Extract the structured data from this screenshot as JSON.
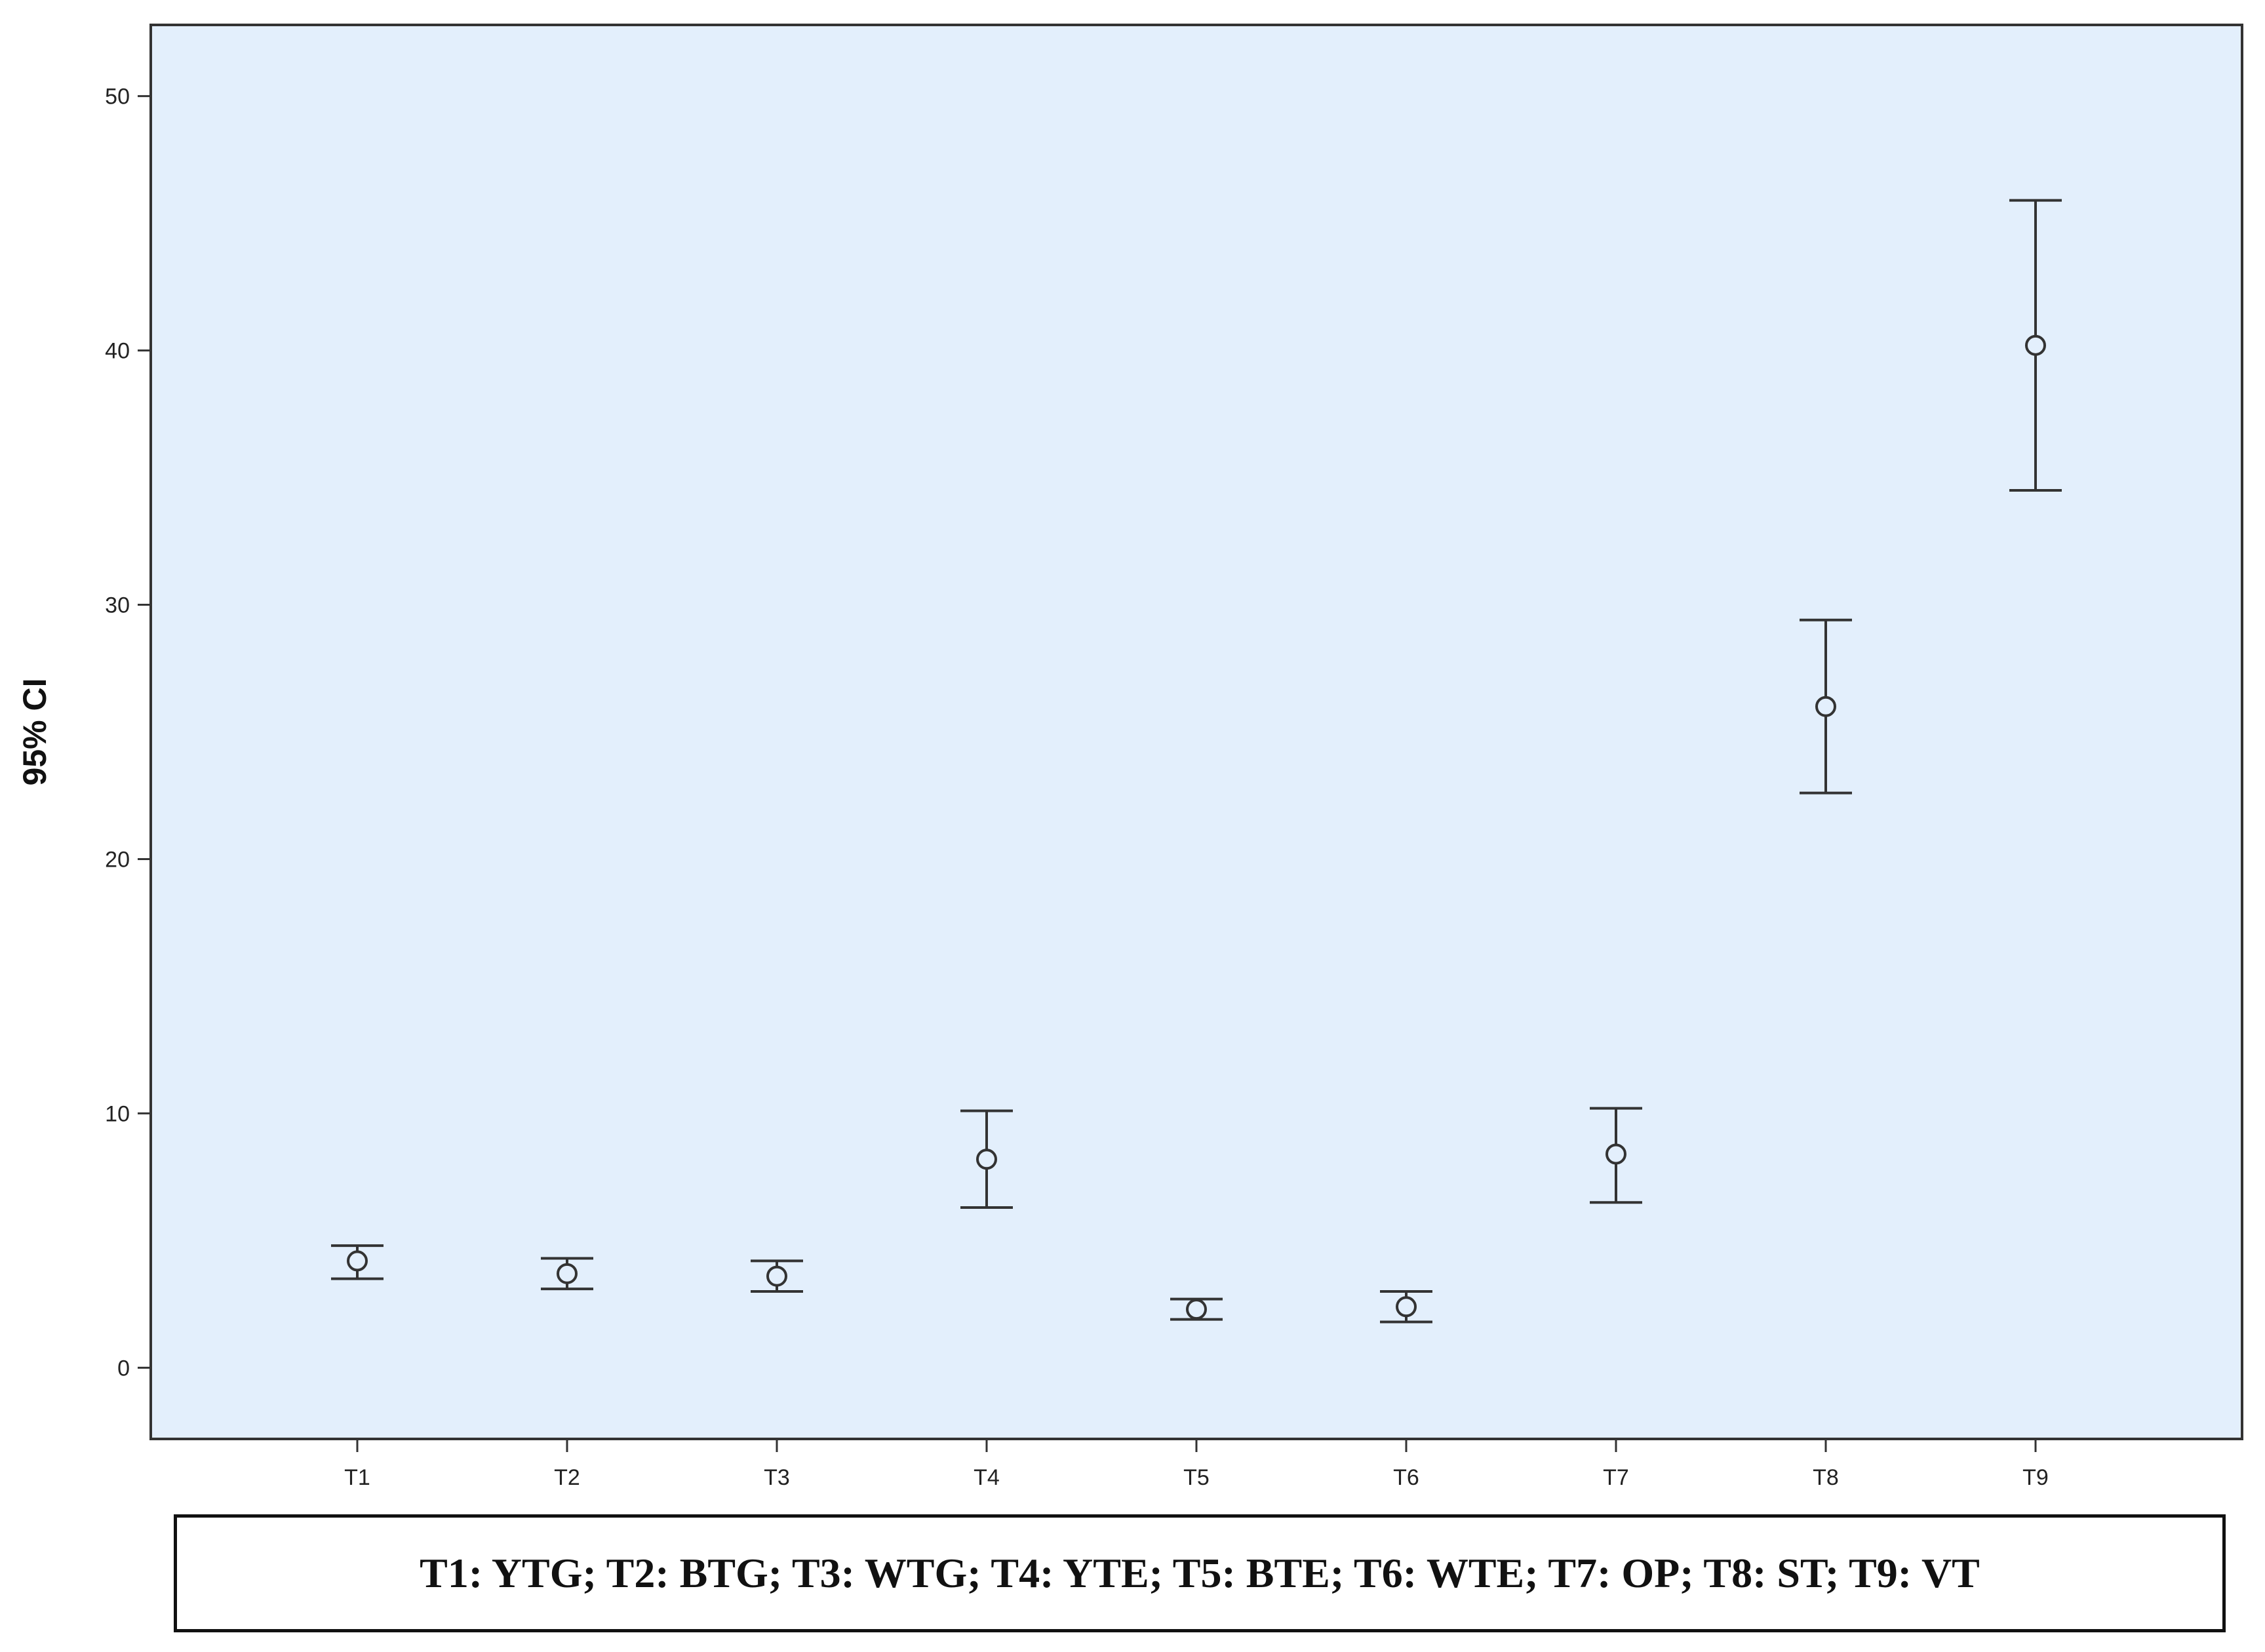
{
  "chart_data": {
    "type": "errorbar",
    "categories": [
      "T1",
      "T2",
      "T3",
      "T4",
      "T5",
      "T6",
      "T7",
      "T8",
      "T9"
    ],
    "series": [
      {
        "mean": [
          4.2,
          3.7,
          3.6,
          8.2,
          2.3,
          2.4,
          8.4,
          26.0,
          40.2
        ],
        "lower": [
          3.5,
          3.1,
          3.0,
          6.3,
          1.9,
          1.8,
          6.5,
          22.6,
          34.5
        ],
        "upper": [
          4.8,
          4.3,
          4.2,
          10.1,
          2.7,
          3.0,
          10.2,
          29.4,
          45.9
        ]
      }
    ],
    "ylabel": "95% CI",
    "xlabel": "",
    "ylim": [
      -2.8,
      52.8
    ],
    "yticks": [
      0,
      10,
      20,
      30,
      40,
      50
    ],
    "grid": false,
    "plot_background": "#e3effc",
    "marker": "open-circle",
    "legend_text": "T1: YTG; T2: BTG; T3: WTG; T4: YTE; T5: BTE; T6: WTE; T7: OP; T8: ST; T9: VT"
  }
}
